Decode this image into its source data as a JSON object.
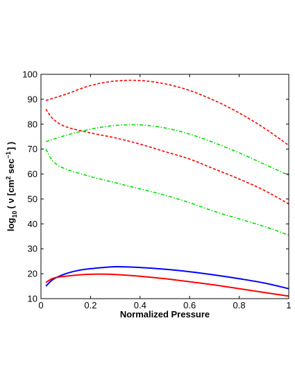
{
  "chart_data": {
    "type": "line",
    "title": "",
    "xlabel": "Normalized Pressure",
    "ylabel": {
      "prefix": "log",
      "prefix_sub": "10",
      "open": "( ν [cm",
      "sup1": "2",
      "middle": " sec",
      "sup2": "−1",
      "close": "] )"
    },
    "xlim": [
      0,
      1
    ],
    "ylim": [
      10,
      100
    ],
    "xticks": [
      0,
      0.2,
      0.4,
      0.6,
      0.8,
      1
    ],
    "xtick_labels": [
      "0",
      "0.2",
      "0.4",
      "0.6",
      "0.8",
      "1"
    ],
    "yticks": [
      10,
      20,
      30,
      40,
      50,
      60,
      70,
      80,
      90,
      100
    ],
    "ytick_labels": [
      "10",
      "20",
      "30",
      "40",
      "50",
      "60",
      "70",
      "80",
      "90",
      "100"
    ],
    "grid": false,
    "legend": "none",
    "series": [
      {
        "color": "#ff0000",
        "style": "dashed",
        "x": [
          0.02,
          0.1,
          0.2,
          0.3,
          0.4,
          0.5,
          0.6,
          0.7,
          0.8,
          0.9,
          1.0
        ],
        "y": [
          89.5,
          92.0,
          95.5,
          97.3,
          97.5,
          96.2,
          93.5,
          89.5,
          84.5,
          78.5,
          71.5
        ]
      },
      {
        "color": "#ff0000",
        "style": "dashed",
        "x": [
          0.02,
          0.05,
          0.1,
          0.2,
          0.3,
          0.4,
          0.5,
          0.6,
          0.7,
          0.8,
          0.9,
          1.0
        ],
        "y": [
          86.0,
          82.0,
          79.0,
          76.5,
          74.5,
          72.0,
          69.0,
          66.0,
          62.0,
          58.0,
          53.5,
          48.0
        ]
      },
      {
        "color": "#00dd00",
        "style": "dashdot",
        "x": [
          0.02,
          0.1,
          0.2,
          0.3,
          0.4,
          0.5,
          0.6,
          0.7,
          0.8,
          0.9,
          1.0
        ],
        "y": [
          73.0,
          75.5,
          78.0,
          79.5,
          79.7,
          78.5,
          76.0,
          72.5,
          68.5,
          64.0,
          59.5
        ]
      },
      {
        "color": "#00dd00",
        "style": "dashdot",
        "x": [
          0.02,
          0.05,
          0.1,
          0.2,
          0.3,
          0.4,
          0.5,
          0.6,
          0.7,
          0.8,
          0.9,
          1.0
        ],
        "y": [
          70.0,
          65.0,
          62.0,
          59.0,
          56.5,
          54.0,
          51.5,
          48.5,
          45.0,
          42.0,
          39.0,
          35.5
        ]
      },
      {
        "color": "#0000ff",
        "style": "solid",
        "x": [
          0.02,
          0.05,
          0.1,
          0.15,
          0.2,
          0.3,
          0.4,
          0.5,
          0.6,
          0.7,
          0.8,
          0.9,
          1.0
        ],
        "y": [
          15.0,
          17.8,
          20.0,
          21.3,
          22.0,
          22.8,
          22.5,
          21.8,
          20.8,
          19.5,
          18.0,
          16.3,
          14.0
        ]
      },
      {
        "color": "#ff0000",
        "style": "solid",
        "x": [
          0.02,
          0.05,
          0.1,
          0.2,
          0.3,
          0.4,
          0.5,
          0.6,
          0.7,
          0.8,
          0.9,
          1.0
        ],
        "y": [
          16.5,
          18.2,
          19.0,
          19.8,
          19.7,
          19.0,
          18.0,
          16.8,
          15.5,
          14.0,
          12.5,
          11.0
        ]
      }
    ]
  }
}
